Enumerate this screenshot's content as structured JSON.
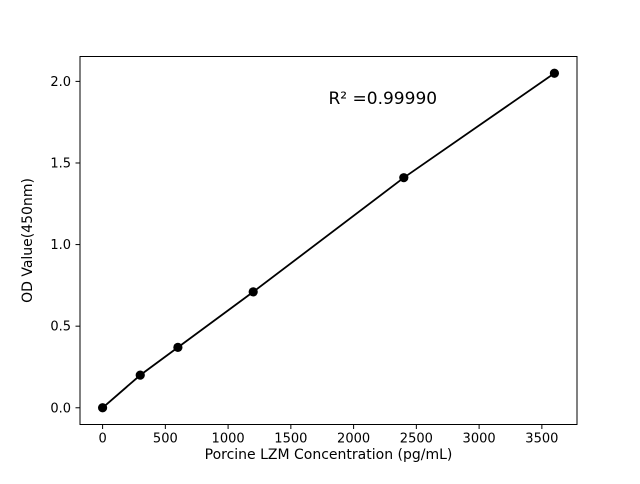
{
  "figure": {
    "background": "#ffffff",
    "frame_color": "#000000"
  },
  "chart_data": {
    "type": "line",
    "title": "",
    "x": [
      0,
      300,
      600,
      1200,
      2400,
      3600
    ],
    "y": [
      0.0,
      0.2,
      0.37,
      0.71,
      1.41,
      2.05
    ],
    "xlabel": "Porcine LZM Concentration (pg/mL)",
    "ylabel": "OD Value(450nm)",
    "xlim": [
      -180,
      3780
    ],
    "ylim": [
      -0.1025,
      2.1525
    ],
    "xticks": {
      "values": [
        0,
        500,
        1000,
        1500,
        2000,
        2500,
        3000,
        3500
      ],
      "labels": [
        "0",
        "500",
        "1000",
        "1500",
        "2000",
        "2500",
        "3000",
        "3500"
      ]
    },
    "yticks": {
      "values": [
        0.0,
        0.5,
        1.0,
        1.5,
        2.0
      ],
      "labels": [
        "0.0",
        "0.5",
        "1.0",
        "1.5",
        "2.0"
      ]
    },
    "annotation": {
      "text": "R² =0.99990",
      "x": 1800,
      "y": 1.86
    },
    "line_color": "#000000",
    "marker_color": "#000000",
    "marker": "circle",
    "grid": false,
    "legend": null
  }
}
